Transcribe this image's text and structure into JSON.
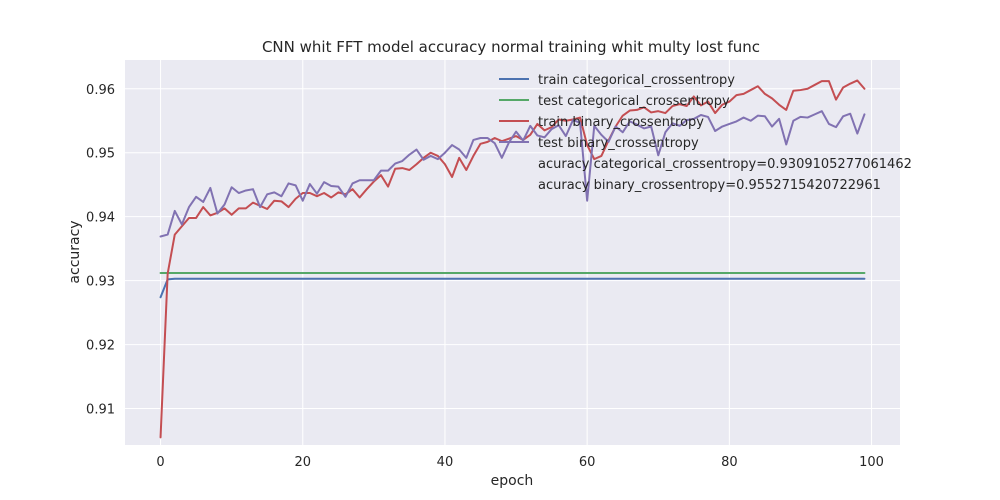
{
  "chart_data": {
    "type": "line",
    "title": "CNN whit FFT model accuracy normal training whit multy lost func",
    "xlabel": "epoch",
    "ylabel": "accuracy",
    "xlim": [
      -5,
      104
    ],
    "ylim": [
      0.9043,
      0.9645
    ],
    "xticks": [
      0,
      20,
      40,
      60,
      80,
      100
    ],
    "yticks": [
      0.91,
      0.92,
      0.93,
      0.94,
      0.95,
      0.96
    ],
    "ytick_labels": [
      "0.91",
      "0.92",
      "0.93",
      "0.94",
      "0.95",
      "0.96"
    ],
    "grid": true,
    "legend_position": "top-right",
    "colors": {
      "background": "#eaeaf2",
      "grid": "#ffffff",
      "train_categorical": "#4c72b0",
      "test_categorical": "#55a868",
      "train_binary": "#c44e52",
      "test_binary": "#8172b2"
    },
    "annotations": [
      "acuracy categorical_crossentropy=0.9309105277061462",
      "acuracy binary_crossentropy=0.9552715420722961"
    ],
    "series": [
      {
        "name": "train categorical_crossentropy",
        "color": "#4c72b0",
        "x": [
          0,
          1,
          2,
          3,
          4,
          5,
          6,
          7,
          8,
          9,
          10,
          11,
          12,
          13,
          14,
          15,
          16,
          17,
          18,
          19,
          20,
          21,
          22,
          23,
          24,
          25,
          26,
          27,
          28,
          29,
          30,
          31,
          32,
          33,
          34,
          35,
          36,
          37,
          38,
          39,
          40,
          41,
          42,
          43,
          44,
          45,
          46,
          47,
          48,
          49,
          50,
          51,
          52,
          53,
          54,
          55,
          56,
          57,
          58,
          59,
          60,
          61,
          62,
          63,
          64,
          65,
          66,
          67,
          68,
          69,
          70,
          71,
          72,
          73,
          74,
          75,
          76,
          77,
          78,
          79,
          80,
          81,
          82,
          83,
          84,
          85,
          86,
          87,
          88,
          89,
          90,
          91,
          92,
          93,
          94,
          95,
          96,
          97,
          98,
          99
        ],
        "values": [
          0.9274,
          0.9302,
          0.9303,
          0.9303,
          0.9303,
          0.9303,
          0.9303,
          0.9303,
          0.9303,
          0.9303,
          0.9303,
          0.9303,
          0.9303,
          0.9303,
          0.9303,
          0.9303,
          0.9303,
          0.9303,
          0.9303,
          0.9303,
          0.9303,
          0.9303,
          0.9303,
          0.9303,
          0.9303,
          0.9303,
          0.9303,
          0.9303,
          0.9303,
          0.9303,
          0.9303,
          0.9303,
          0.9303,
          0.9303,
          0.9303,
          0.9303,
          0.9303,
          0.9303,
          0.9303,
          0.9303,
          0.9303,
          0.9303,
          0.9303,
          0.9303,
          0.9303,
          0.9303,
          0.9303,
          0.9303,
          0.9303,
          0.9303,
          0.9303,
          0.9303,
          0.9303,
          0.9303,
          0.9303,
          0.9303,
          0.9303,
          0.9303,
          0.9303,
          0.9303,
          0.9303,
          0.9303,
          0.9303,
          0.9303,
          0.9303,
          0.9303,
          0.9303,
          0.9303,
          0.9303,
          0.9303,
          0.9303,
          0.9303,
          0.9303,
          0.9303,
          0.9303,
          0.9303,
          0.9303,
          0.9303,
          0.9303,
          0.9303,
          0.9303,
          0.9303,
          0.9303,
          0.9303,
          0.9303,
          0.9303,
          0.9303,
          0.9303,
          0.9303,
          0.9303,
          0.9303,
          0.9303,
          0.9303,
          0.9303,
          0.9303,
          0.9303,
          0.9303,
          0.9303,
          0.9303,
          0.9303
        ]
      },
      {
        "name": "test categorical_crossentropy",
        "color": "#55a868",
        "x": [
          0,
          1,
          2,
          3,
          4,
          5,
          6,
          7,
          8,
          9,
          10,
          11,
          12,
          13,
          14,
          15,
          16,
          17,
          18,
          19,
          20,
          21,
          22,
          23,
          24,
          25,
          26,
          27,
          28,
          29,
          30,
          31,
          32,
          33,
          34,
          35,
          36,
          37,
          38,
          39,
          40,
          41,
          42,
          43,
          44,
          45,
          46,
          47,
          48,
          49,
          50,
          51,
          52,
          53,
          54,
          55,
          56,
          57,
          58,
          59,
          60,
          61,
          62,
          63,
          64,
          65,
          66,
          67,
          68,
          69,
          70,
          71,
          72,
          73,
          74,
          75,
          76,
          77,
          78,
          79,
          80,
          81,
          82,
          83,
          84,
          85,
          86,
          87,
          88,
          89,
          90,
          91,
          92,
          93,
          94,
          95,
          96,
          97,
          98,
          99
        ],
        "values": [
          0.9312,
          0.9312,
          0.9312,
          0.9312,
          0.9312,
          0.9312,
          0.9312,
          0.9312,
          0.9312,
          0.9312,
          0.9312,
          0.9312,
          0.9312,
          0.9312,
          0.9312,
          0.9312,
          0.9312,
          0.9312,
          0.9312,
          0.9312,
          0.9312,
          0.9312,
          0.9312,
          0.9312,
          0.9312,
          0.9312,
          0.9312,
          0.9312,
          0.9312,
          0.9312,
          0.9312,
          0.9312,
          0.9312,
          0.9312,
          0.9312,
          0.9312,
          0.9312,
          0.9312,
          0.9312,
          0.9312,
          0.9312,
          0.9312,
          0.9312,
          0.9312,
          0.9312,
          0.9312,
          0.9312,
          0.9312,
          0.9312,
          0.9312,
          0.9312,
          0.9312,
          0.9312,
          0.9312,
          0.9312,
          0.9312,
          0.9312,
          0.9312,
          0.9312,
          0.9312,
          0.9312,
          0.9312,
          0.9312,
          0.9312,
          0.9312,
          0.9312,
          0.9312,
          0.9312,
          0.9312,
          0.9312,
          0.9312,
          0.9312,
          0.9312,
          0.9312,
          0.9312,
          0.9312,
          0.9312,
          0.9312,
          0.9312,
          0.9312,
          0.9312,
          0.9312,
          0.9312,
          0.9312,
          0.9312,
          0.9312,
          0.9312,
          0.9312,
          0.9312,
          0.9312,
          0.9312,
          0.9312,
          0.9312,
          0.9312,
          0.9312,
          0.9312,
          0.9312,
          0.9312,
          0.9312,
          0.9312
        ]
      },
      {
        "name": "train binary_crossentropy",
        "color": "#c44e52",
        "x": [
          0,
          1,
          2,
          3,
          4,
          5,
          6,
          7,
          8,
          9,
          10,
          11,
          12,
          13,
          14,
          15,
          16,
          17,
          18,
          19,
          20,
          21,
          22,
          23,
          24,
          25,
          26,
          27,
          28,
          29,
          30,
          31,
          32,
          33,
          34,
          35,
          36,
          37,
          38,
          39,
          40,
          41,
          42,
          43,
          44,
          45,
          46,
          47,
          48,
          49,
          50,
          51,
          52,
          53,
          54,
          55,
          56,
          57,
          58,
          59,
          60,
          61,
          62,
          63,
          64,
          65,
          66,
          67,
          68,
          69,
          70,
          71,
          72,
          73,
          74,
          75,
          76,
          77,
          78,
          79,
          80,
          81,
          82,
          83,
          84,
          85,
          86,
          87,
          88,
          89,
          90,
          91,
          92,
          93,
          94,
          95,
          96,
          97,
          98,
          99
        ],
        "values": [
          0.9055,
          0.9311,
          0.9372,
          0.9385,
          0.9398,
          0.9398,
          0.9415,
          0.9402,
          0.9406,
          0.9413,
          0.9403,
          0.9413,
          0.9413,
          0.9422,
          0.9417,
          0.9412,
          0.9425,
          0.9424,
          0.9415,
          0.9428,
          0.9437,
          0.9437,
          0.9432,
          0.9437,
          0.943,
          0.9438,
          0.9435,
          0.9443,
          0.943,
          0.9443,
          0.9455,
          0.9465,
          0.9447,
          0.9475,
          0.9476,
          0.9473,
          0.9482,
          0.9492,
          0.95,
          0.9495,
          0.9482,
          0.9462,
          0.9492,
          0.9473,
          0.9495,
          0.9514,
          0.9517,
          0.9523,
          0.9518,
          0.9522,
          0.9526,
          0.952,
          0.9528,
          0.9545,
          0.9535,
          0.954,
          0.9552,
          0.955,
          0.9552,
          0.9555,
          0.9512,
          0.949,
          0.9495,
          0.9519,
          0.9541,
          0.9558,
          0.9566,
          0.9567,
          0.9571,
          0.9563,
          0.9565,
          0.9562,
          0.9573,
          0.9576,
          0.9573,
          0.9588,
          0.9574,
          0.958,
          0.9562,
          0.9575,
          0.958,
          0.959,
          0.9592,
          0.9598,
          0.9604,
          0.9592,
          0.9585,
          0.9575,
          0.9567,
          0.9597,
          0.9598,
          0.96,
          0.9606,
          0.9612,
          0.9612,
          0.9583,
          0.9602,
          0.9608,
          0.9613,
          0.96
        ]
      },
      {
        "name": "test binary_crossentropy",
        "color": "#8172b2",
        "x": [
          0,
          1,
          2,
          3,
          4,
          5,
          6,
          7,
          8,
          9,
          10,
          11,
          12,
          13,
          14,
          15,
          16,
          17,
          18,
          19,
          20,
          21,
          22,
          23,
          24,
          25,
          26,
          27,
          28,
          29,
          30,
          31,
          32,
          33,
          34,
          35,
          36,
          37,
          38,
          39,
          40,
          41,
          42,
          43,
          44,
          45,
          46,
          47,
          48,
          49,
          50,
          51,
          52,
          53,
          54,
          55,
          56,
          57,
          58,
          59,
          60,
          61,
          62,
          63,
          64,
          65,
          66,
          67,
          68,
          69,
          70,
          71,
          72,
          73,
          74,
          75,
          76,
          77,
          78,
          79,
          80,
          81,
          82,
          83,
          84,
          85,
          86,
          87,
          88,
          89,
          90,
          91,
          92,
          93,
          94,
          95,
          96,
          97,
          98,
          99
        ],
        "values": [
          0.9369,
          0.9372,
          0.9409,
          0.9388,
          0.9415,
          0.9431,
          0.9423,
          0.9445,
          0.9405,
          0.9419,
          0.9446,
          0.9437,
          0.9441,
          0.9443,
          0.9415,
          0.9435,
          0.9438,
          0.9432,
          0.9452,
          0.9449,
          0.9425,
          0.9451,
          0.9436,
          0.9454,
          0.9448,
          0.9447,
          0.9431,
          0.9452,
          0.9457,
          0.9457,
          0.9457,
          0.9472,
          0.9472,
          0.9483,
          0.9487,
          0.9497,
          0.9505,
          0.9489,
          0.9495,
          0.949,
          0.95,
          0.9512,
          0.9505,
          0.9492,
          0.952,
          0.9523,
          0.9523,
          0.9515,
          0.9492,
          0.9516,
          0.9533,
          0.9519,
          0.9542,
          0.9527,
          0.9524,
          0.9537,
          0.9543,
          0.9526,
          0.9551,
          0.9547,
          0.9425,
          0.9542,
          0.9528,
          0.9517,
          0.9541,
          0.9532,
          0.9549,
          0.9544,
          0.9538,
          0.9541,
          0.9496,
          0.9532,
          0.9546,
          0.9542,
          0.9551,
          0.9553,
          0.9559,
          0.9556,
          0.9534,
          0.9541,
          0.9545,
          0.9549,
          0.9555,
          0.955,
          0.9558,
          0.9557,
          0.9541,
          0.9553,
          0.9513,
          0.955,
          0.9556,
          0.9555,
          0.956,
          0.9565,
          0.9545,
          0.954,
          0.9557,
          0.9561,
          0.953,
          0.956
        ]
      }
    ]
  }
}
